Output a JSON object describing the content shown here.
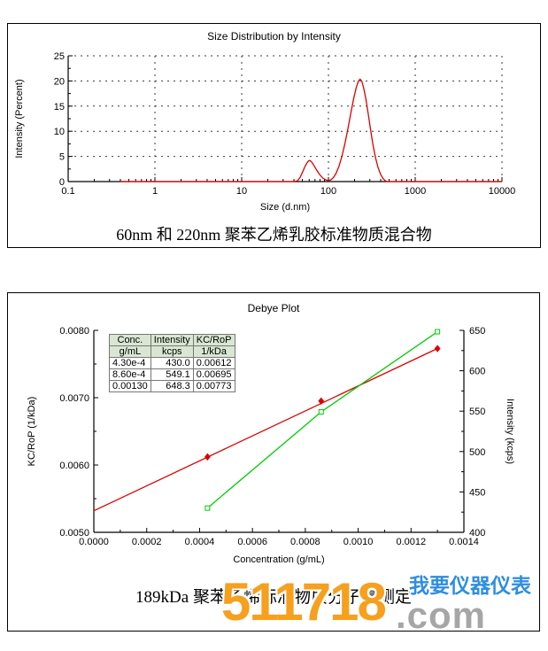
{
  "captions": {
    "size_distribution": "60nm 和 220nm 聚苯乙烯乳胶标准物质混合物",
    "debye": "189kDa 聚苯乙烯标准物质分子量测定"
  },
  "watermark": {
    "number": "511718",
    "domain_suffix": ".com",
    "slogan": "我要仪器仪表",
    "number_color": "#F6A01E",
    "suffix_color": "#A6A6A6",
    "slogan_color": "#2E8EE0"
  },
  "chart_data": [
    {
      "type": "line",
      "title": "Size Distribution by Intensity",
      "xlabel": "Size (d.nm)",
      "ylabel": "Intensity (Percent)",
      "x_scale": "log",
      "xlim": [
        0.1,
        10000
      ],
      "ylim": [
        0,
        25
      ],
      "x_ticks": [
        0.1,
        1,
        10,
        100,
        1000,
        10000
      ],
      "x_tick_labels": [
        "0.1",
        "1",
        "10",
        "100",
        "1000",
        "10000"
      ],
      "y_ticks": [
        0,
        5,
        10,
        15,
        20,
        25
      ],
      "y_minor_step": 2.5,
      "grid": true,
      "line_color": "#DD0000",
      "peaks": [
        {
          "size_d_nm": 60,
          "intensity_percent": 4.2
        },
        {
          "size_d_nm": 230,
          "intensity_percent": 20.3
        }
      ],
      "points": [
        [
          0.4,
          0
        ],
        [
          40,
          0
        ],
        [
          44,
          0.15
        ],
        [
          47,
          0.8
        ],
        [
          50,
          1.8
        ],
        [
          53,
          2.8
        ],
        [
          56,
          3.6
        ],
        [
          59,
          4.1
        ],
        [
          61,
          4.2
        ],
        [
          64,
          3.9
        ],
        [
          68,
          3.2
        ],
        [
          73,
          2.3
        ],
        [
          79,
          1.4
        ],
        [
          86,
          0.7
        ],
        [
          93,
          0.35
        ],
        [
          100,
          0.2
        ],
        [
          107,
          0.35
        ],
        [
          114,
          0.8
        ],
        [
          122,
          1.6
        ],
        [
          132,
          3.0
        ],
        [
          143,
          5.0
        ],
        [
          155,
          7.6
        ],
        [
          168,
          10.6
        ],
        [
          182,
          13.8
        ],
        [
          196,
          16.6
        ],
        [
          210,
          18.8
        ],
        [
          222,
          20.0
        ],
        [
          232,
          20.35
        ],
        [
          243,
          19.9
        ],
        [
          255,
          18.6
        ],
        [
          270,
          16.4
        ],
        [
          287,
          13.5
        ],
        [
          305,
          10.4
        ],
        [
          325,
          7.4
        ],
        [
          348,
          4.8
        ],
        [
          373,
          2.8
        ],
        [
          400,
          1.4
        ],
        [
          430,
          0.5
        ],
        [
          458,
          0.1
        ],
        [
          470,
          0
        ],
        [
          10000,
          0
        ]
      ]
    },
    {
      "type": "line",
      "title": "Debye Plot",
      "xlabel": "Concentration (g/mL)",
      "xlim": [
        0,
        0.0014
      ],
      "x_ticks": [
        0,
        0.0002,
        0.0004,
        0.0006,
        0.0008,
        0.001,
        0.0012,
        0.0014
      ],
      "x_tick_labels": [
        "0.0000",
        "0.0002",
        "0.0004",
        "0.0006",
        "0.0008",
        "0.0010",
        "0.0012",
        "0.0014"
      ],
      "x_minor_step": 0.0001,
      "y_left": {
        "label": "KC/RoP (1/kDa)",
        "lim": [
          0.005,
          0.008
        ],
        "ticks": [
          0.005,
          0.006,
          0.007,
          0.008
        ],
        "tick_labels": [
          "0.0050",
          "0.0060",
          "0.0070",
          "0.0080"
        ],
        "minor_step": 0.0005
      },
      "y_right": {
        "label": "Intensity (kcps)",
        "lim": [
          400,
          650
        ],
        "ticks": [
          400,
          450,
          500,
          550,
          600,
          650
        ],
        "tick_labels": [
          "400",
          "450",
          "500",
          "550",
          "600",
          "650"
        ],
        "minor_step": 25
      },
      "series": [
        {
          "name": "KC/RoP",
          "axis": "left",
          "color": "#DD0000",
          "marker": "diamond",
          "fit_line": [
            [
              0,
              0.00532
            ],
            [
              0.0013,
              0.00773
            ]
          ],
          "points": [
            [
              0.00043,
              0.00612
            ],
            [
              0.00086,
              0.00695
            ],
            [
              0.0013,
              0.00773
            ]
          ]
        },
        {
          "name": "Intensity",
          "axis": "right",
          "color": "#00CC00",
          "marker": "square-open",
          "points": [
            [
              0.00043,
              430
            ],
            [
              0.00086,
              549.1
            ],
            [
              0.0013,
              648.3
            ]
          ]
        }
      ],
      "table": {
        "header_bg": "#D9E7D2",
        "col_headers": [
          [
            "Conc.",
            "g/mL"
          ],
          [
            "Intensity",
            "kcps"
          ],
          [
            "KC/RoP",
            "1/kDa"
          ]
        ],
        "rows": [
          [
            "4.30e-4",
            "430.0",
            "0.00612"
          ],
          [
            "8.60e-4",
            "549.1",
            "0.00695"
          ],
          [
            "0.00130",
            "648.3",
            "0.00773"
          ]
        ]
      }
    }
  ]
}
